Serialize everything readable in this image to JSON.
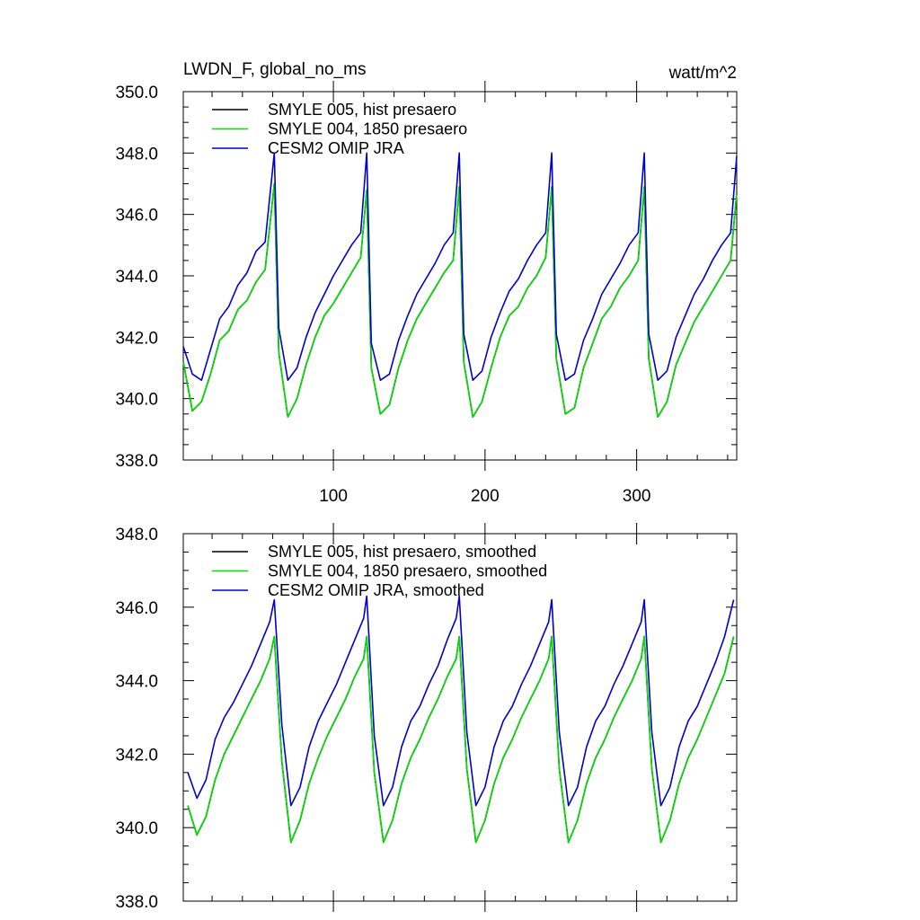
{
  "chart_data": [
    {
      "type": "line",
      "title": "LWDN_F, global_no_ms",
      "units": "watt/m^2",
      "xlim": [
        1,
        366
      ],
      "ylim": [
        338,
        350
      ],
      "y_ticks": [
        338,
        340,
        342,
        344,
        346,
        348,
        350
      ],
      "y_tick_labels": [
        "338.0",
        "340.0",
        "342.0",
        "344.0",
        "346.0",
        "348.0",
        "350.0"
      ],
      "x_ticks": [
        100,
        200,
        300
      ],
      "x_tick_labels": [
        "100",
        "200",
        "300"
      ],
      "legend_position": "top-left",
      "series": [
        {
          "name": "SMYLE 005, hist presaero",
          "color": "#000000",
          "x": [
            1,
            7,
            13,
            19,
            25,
            31,
            37,
            43,
            49,
            55,
            61,
            64,
            70,
            76,
            82,
            88,
            94,
            100,
            106,
            112,
            118,
            122,
            125,
            131,
            137,
            143,
            149,
            155,
            161,
            167,
            173,
            179,
            183,
            186,
            192,
            198,
            204,
            210,
            216,
            222,
            228,
            234,
            240,
            244,
            247,
            253,
            259,
            265,
            271,
            277,
            283,
            289,
            295,
            301,
            305,
            308,
            314,
            320,
            326,
            332,
            338,
            344,
            350,
            356,
            362,
            366
          ],
          "y": [
            341.2,
            339.6,
            339.9,
            340.8,
            341.9,
            342.2,
            342.9,
            343.2,
            343.8,
            344.2,
            347.0,
            341.5,
            339.4,
            340.0,
            341.1,
            342.0,
            342.7,
            343.1,
            343.6,
            344.1,
            344.6,
            346.8,
            341.0,
            339.5,
            339.8,
            341.0,
            341.9,
            342.6,
            343.1,
            343.6,
            344.1,
            344.5,
            346.9,
            341.2,
            339.4,
            339.9,
            341.0,
            342.0,
            342.7,
            343.0,
            343.6,
            344.0,
            344.6,
            346.9,
            341.3,
            339.5,
            339.7,
            341.0,
            341.8,
            342.6,
            343.0,
            343.6,
            344.0,
            344.5,
            346.9,
            341.3,
            339.4,
            339.9,
            341.1,
            341.8,
            342.5,
            343.0,
            343.5,
            344.0,
            344.5,
            346.7
          ]
        },
        {
          "name": "SMYLE 004, 1850 presaero",
          "color": "#00dd00",
          "x": [
            1,
            7,
            13,
            19,
            25,
            31,
            37,
            43,
            49,
            55,
            61,
            64,
            70,
            76,
            82,
            88,
            94,
            100,
            106,
            112,
            118,
            122,
            125,
            131,
            137,
            143,
            149,
            155,
            161,
            167,
            173,
            179,
            183,
            186,
            192,
            198,
            204,
            210,
            216,
            222,
            228,
            234,
            240,
            244,
            247,
            253,
            259,
            265,
            271,
            277,
            283,
            289,
            295,
            301,
            305,
            308,
            314,
            320,
            326,
            332,
            338,
            344,
            350,
            356,
            362,
            366
          ],
          "y": [
            341.2,
            339.6,
            339.9,
            340.8,
            341.9,
            342.2,
            342.9,
            343.2,
            343.8,
            344.2,
            347.0,
            341.5,
            339.4,
            340.0,
            341.1,
            342.0,
            342.7,
            343.1,
            343.6,
            344.1,
            344.6,
            346.8,
            341.0,
            339.5,
            339.8,
            341.0,
            341.9,
            342.6,
            343.1,
            343.6,
            344.1,
            344.5,
            346.9,
            341.2,
            339.4,
            339.9,
            341.0,
            342.0,
            342.7,
            343.0,
            343.6,
            344.0,
            344.6,
            346.9,
            341.3,
            339.5,
            339.7,
            341.0,
            341.8,
            342.6,
            343.0,
            343.6,
            344.0,
            344.5,
            346.9,
            341.3,
            339.4,
            339.9,
            341.1,
            341.8,
            342.5,
            343.0,
            343.5,
            344.0,
            344.5,
            346.7
          ]
        },
        {
          "name": "CESM2 OMIP JRA",
          "color": "#0000cc",
          "x": [
            1,
            7,
            13,
            19,
            25,
            31,
            37,
            43,
            49,
            55,
            61,
            64,
            70,
            76,
            82,
            88,
            94,
            100,
            106,
            112,
            118,
            122,
            125,
            131,
            137,
            143,
            149,
            155,
            161,
            167,
            173,
            179,
            183,
            186,
            192,
            198,
            204,
            210,
            216,
            222,
            228,
            234,
            240,
            244,
            247,
            253,
            259,
            265,
            271,
            277,
            283,
            289,
            295,
            301,
            305,
            308,
            314,
            320,
            326,
            332,
            338,
            344,
            350,
            356,
            362,
            366
          ],
          "y": [
            341.7,
            340.8,
            340.6,
            341.6,
            342.6,
            343.0,
            343.7,
            344.1,
            344.8,
            345.1,
            348.0,
            342.3,
            340.6,
            341.0,
            342.0,
            342.8,
            343.4,
            344.0,
            344.5,
            345.0,
            345.4,
            348.0,
            341.8,
            340.6,
            340.8,
            341.9,
            342.7,
            343.4,
            343.9,
            344.4,
            345.0,
            345.4,
            348.0,
            342.1,
            340.6,
            340.9,
            342.0,
            342.8,
            343.5,
            343.9,
            344.5,
            345.0,
            345.4,
            348.0,
            342.1,
            340.6,
            340.8,
            341.9,
            342.6,
            343.4,
            343.9,
            344.4,
            345.0,
            345.4,
            348.0,
            342.1,
            340.6,
            340.9,
            342.0,
            342.7,
            343.4,
            343.9,
            344.5,
            345.0,
            345.4,
            347.9
          ]
        }
      ]
    },
    {
      "type": "line",
      "title": "",
      "xlim": [
        1,
        366
      ],
      "ylim": [
        338,
        348
      ],
      "y_ticks": [
        338,
        340,
        342,
        344,
        346,
        348
      ],
      "y_tick_labels": [
        "338.0",
        "340.0",
        "342.0",
        "344.0",
        "346.0",
        "348.0"
      ],
      "x_ticks": [
        100,
        200,
        300
      ],
      "legend_position": "top-left",
      "series": [
        {
          "name": "SMYLE 005, hist presaero, smoothed",
          "color": "#000000",
          "x": [
            4,
            10,
            16,
            22,
            28,
            34,
            40,
            46,
            52,
            58,
            61,
            66,
            72,
            78,
            84,
            90,
            96,
            102,
            108,
            114,
            120,
            122,
            127,
            133,
            139,
            145,
            151,
            157,
            163,
            169,
            175,
            181,
            183,
            188,
            194,
            200,
            206,
            212,
            218,
            224,
            230,
            236,
            242,
            244,
            249,
            255,
            261,
            267,
            273,
            279,
            285,
            291,
            297,
            303,
            305,
            310,
            316,
            322,
            328,
            334,
            340,
            346,
            352,
            358,
            364
          ],
          "y": [
            340.6,
            339.8,
            340.3,
            341.3,
            342.0,
            342.5,
            343.0,
            343.5,
            344.0,
            344.6,
            345.2,
            341.8,
            339.6,
            340.2,
            341.2,
            341.9,
            342.5,
            343.0,
            343.5,
            344.1,
            344.6,
            345.2,
            341.5,
            339.6,
            340.2,
            341.2,
            341.9,
            342.4,
            343.0,
            343.5,
            344.1,
            344.6,
            345.2,
            341.6,
            339.6,
            340.2,
            341.2,
            341.9,
            342.4,
            343.0,
            343.5,
            344.0,
            344.6,
            345.2,
            341.6,
            339.6,
            340.2,
            341.2,
            341.9,
            342.4,
            343.0,
            343.5,
            344.0,
            344.6,
            345.2,
            341.6,
            339.6,
            340.2,
            341.2,
            341.9,
            342.4,
            343.0,
            343.6,
            344.2,
            345.2
          ]
        },
        {
          "name": "SMYLE 004, 1850 presaero, smoothed",
          "color": "#00dd00",
          "x": [
            4,
            10,
            16,
            22,
            28,
            34,
            40,
            46,
            52,
            58,
            61,
            66,
            72,
            78,
            84,
            90,
            96,
            102,
            108,
            114,
            120,
            122,
            127,
            133,
            139,
            145,
            151,
            157,
            163,
            169,
            175,
            181,
            183,
            188,
            194,
            200,
            206,
            212,
            218,
            224,
            230,
            236,
            242,
            244,
            249,
            255,
            261,
            267,
            273,
            279,
            285,
            291,
            297,
            303,
            305,
            310,
            316,
            322,
            328,
            334,
            340,
            346,
            352,
            358,
            364
          ],
          "y": [
            340.6,
            339.8,
            340.3,
            341.3,
            342.0,
            342.5,
            343.0,
            343.5,
            344.0,
            344.6,
            345.2,
            341.8,
            339.6,
            340.2,
            341.2,
            341.9,
            342.5,
            343.0,
            343.5,
            344.1,
            344.6,
            345.2,
            341.5,
            339.6,
            340.2,
            341.2,
            341.9,
            342.4,
            343.0,
            343.5,
            344.1,
            344.6,
            345.2,
            341.6,
            339.6,
            340.2,
            341.2,
            341.9,
            342.4,
            343.0,
            343.5,
            344.0,
            344.6,
            345.2,
            341.6,
            339.6,
            340.2,
            341.2,
            341.9,
            342.4,
            343.0,
            343.5,
            344.0,
            344.6,
            345.2,
            341.6,
            339.6,
            340.2,
            341.2,
            341.9,
            342.4,
            343.0,
            343.6,
            344.2,
            345.2
          ]
        },
        {
          "name": "CESM2 OMIP JRA, smoothed",
          "color": "#0000cc",
          "x": [
            4,
            10,
            16,
            22,
            28,
            34,
            40,
            46,
            52,
            58,
            61,
            66,
            72,
            78,
            84,
            90,
            96,
            102,
            108,
            114,
            120,
            122,
            127,
            133,
            139,
            145,
            151,
            157,
            163,
            169,
            175,
            181,
            183,
            188,
            194,
            200,
            206,
            212,
            218,
            224,
            230,
            236,
            242,
            244,
            249,
            255,
            261,
            267,
            273,
            279,
            285,
            291,
            297,
            303,
            305,
            310,
            316,
            322,
            328,
            334,
            340,
            346,
            352,
            358,
            364
          ],
          "y": [
            341.5,
            340.8,
            341.3,
            342.4,
            343.0,
            343.4,
            343.9,
            344.4,
            345.0,
            345.6,
            346.2,
            342.8,
            340.6,
            341.1,
            342.2,
            342.9,
            343.4,
            343.9,
            344.5,
            345.1,
            345.7,
            346.3,
            342.5,
            340.6,
            341.1,
            342.2,
            342.9,
            343.3,
            343.9,
            344.4,
            345.1,
            345.7,
            346.3,
            342.6,
            340.6,
            341.1,
            342.2,
            342.9,
            343.3,
            343.9,
            344.4,
            345.0,
            345.6,
            346.2,
            342.6,
            340.6,
            341.1,
            342.2,
            342.9,
            343.3,
            343.9,
            344.4,
            345.0,
            345.6,
            346.2,
            342.6,
            340.6,
            341.1,
            342.2,
            342.9,
            343.3,
            343.9,
            344.5,
            345.2,
            346.2
          ]
        }
      ]
    }
  ]
}
